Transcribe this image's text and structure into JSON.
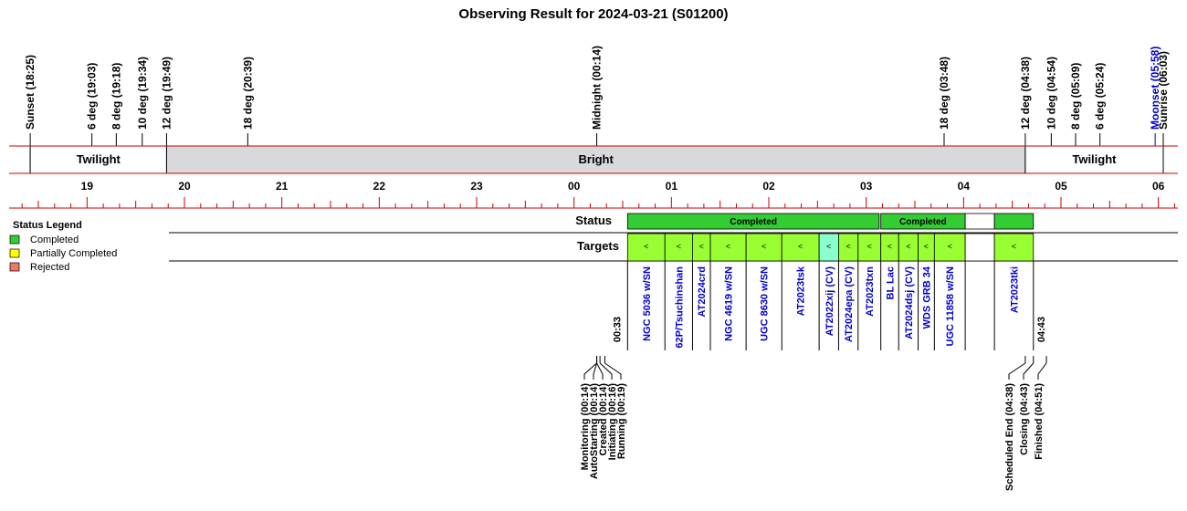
{
  "title": "Observing Result for 2024-03-21 (S01200)",
  "chart_data": {
    "type": "timeline",
    "time_axis": {
      "start_hour": 18.2,
      "end_hour": 30.2,
      "tick_labels": [
        "19",
        "20",
        "21",
        "22",
        "23",
        "00",
        "01",
        "02",
        "03",
        "04",
        "05",
        "06"
      ]
    },
    "events": [
      {
        "label": "Sunset (18:25)",
        "time": "18:25",
        "color": "#000000"
      },
      {
        "label": "6 deg (19:03)",
        "time": "19:03",
        "color": "#000000"
      },
      {
        "label": "8 deg (19:18)",
        "time": "19:18",
        "color": "#000000"
      },
      {
        "label": "10 deg (19:34)",
        "time": "19:34",
        "color": "#000000"
      },
      {
        "label": "12 deg (19:49)",
        "time": "19:49",
        "color": "#000000"
      },
      {
        "label": "18 deg (20:39)",
        "time": "20:39",
        "color": "#000000"
      },
      {
        "label": "Midnight (00:14)",
        "time": "00:14",
        "color": "#000000"
      },
      {
        "label": "18 deg (03:48)",
        "time": "03:48",
        "color": "#000000"
      },
      {
        "label": "12 deg (04:38)",
        "time": "04:38",
        "color": "#000000"
      },
      {
        "label": "10 deg (04:54)",
        "time": "04:54",
        "color": "#000000"
      },
      {
        "label": "8 deg (05:09)",
        "time": "05:09",
        "color": "#000000"
      },
      {
        "label": "6 deg (05:24)",
        "time": "05:24",
        "color": "#000000"
      },
      {
        "label": "Moonset (05:58)",
        "time": "05:58",
        "color": "#0000cc"
      },
      {
        "label": "Sunrise (06:03)",
        "time": "06:03",
        "color": "#000000"
      }
    ],
    "sky_periods": [
      {
        "label": "Twilight",
        "start": "18:25",
        "end": "19:49",
        "fill": "#ffffff"
      },
      {
        "label": "Bright",
        "start": "19:49",
        "end": "04:38",
        "fill": "#d9d9d9"
      },
      {
        "label": "Twilight",
        "start": "04:38",
        "end": "06:03",
        "fill": "#ffffff"
      }
    ],
    "status_row": {
      "label": "Status",
      "segments": [
        {
          "label": "Completed",
          "start": "00:33",
          "end": "03:08",
          "status": "Completed"
        },
        {
          "label": "Completed",
          "start": "03:09",
          "end": "04:01",
          "status": "Completed"
        },
        {
          "label": "",
          "start": "04:01",
          "end": "04:19",
          "status": "None"
        },
        {
          "label": "",
          "start": "04:19",
          "end": "04:43",
          "status": "Completed"
        }
      ]
    },
    "targets_row": {
      "label": "Targets",
      "targets": [
        {
          "name": "NGC 5036 w/SN",
          "start": "00:33",
          "end": "00:56",
          "fill": "#99ff33"
        },
        {
          "name": "62P/Tsuchinshan",
          "start": "00:56",
          "end": "01:13",
          "fill": "#99ff33"
        },
        {
          "name": "AT2024crd",
          "start": "01:13",
          "end": "01:24",
          "fill": "#99ff33"
        },
        {
          "name": "NGC 4619 w/SN",
          "start": "01:24",
          "end": "01:46",
          "fill": "#99ff33"
        },
        {
          "name": "UGC 8630 w/SN",
          "start": "01:46",
          "end": "02:08",
          "fill": "#99ff33"
        },
        {
          "name": "AT2023tsk",
          "start": "02:08",
          "end": "02:31",
          "fill": "#99ff33"
        },
        {
          "name": "AT2022xij (CV)",
          "start": "02:31",
          "end": "02:43",
          "fill": "#88ffcc"
        },
        {
          "name": "AT2024epa (CV)",
          "start": "02:43",
          "end": "02:55",
          "fill": "#99ff33"
        },
        {
          "name": "AT2023txn",
          "start": "02:55",
          "end": "03:09",
          "fill": "#99ff33"
        },
        {
          "name": "BL Lac",
          "start": "03:09",
          "end": "03:20",
          "fill": "#99ff33"
        },
        {
          "name": "AT2024dsj (CV)",
          "start": "03:20",
          "end": "03:32",
          "fill": "#99ff33"
        },
        {
          "name": "WDS GRB 34",
          "start": "03:32",
          "end": "03:42",
          "fill": "#99ff33"
        },
        {
          "name": "UGC 11858 w/SN",
          "start": "03:42",
          "end": "04:01",
          "fill": "#99ff33"
        },
        {
          "name": "",
          "start": "04:01",
          "end": "04:19",
          "fill": "#ffffff"
        },
        {
          "name": "AT2023tki",
          "start": "04:19",
          "end": "04:43",
          "fill": "#99ff33"
        }
      ],
      "marker_glyph": "<"
    },
    "bound_labels": [
      {
        "label": "00:33",
        "time": "00:33"
      },
      {
        "label": "04:43",
        "time": "04:43"
      }
    ],
    "bottom_events": [
      {
        "label": "Monitoring (00:14)",
        "time": "00:14"
      },
      {
        "label": "AutoStarting (00:14)",
        "time": "00:14"
      },
      {
        "label": "Created (00:14)",
        "time": "00:14"
      },
      {
        "label": "Initiating (00:16)",
        "time": "00:16"
      },
      {
        "label": "Running (00:19)",
        "time": "00:19"
      },
      {
        "label": "Scheduled End (04:38)",
        "time": "04:38"
      },
      {
        "label": "Closing (04:43)",
        "time": "04:43"
      },
      {
        "label": "Finished (04:51)",
        "time": "04:51"
      }
    ],
    "legend": {
      "title": "Status Legend",
      "placement": "left",
      "items": [
        {
          "label": "Completed",
          "color": "#33cc33"
        },
        {
          "label": "Partially Completed",
          "color": "#ffff00"
        },
        {
          "label": "Rejected",
          "color": "#ee7766"
        }
      ]
    },
    "colors": {
      "axis_line": "#cc0000",
      "completed": "#33cc33",
      "target_label": "#0000cc",
      "bright_fill": "#d9d9d9"
    }
  }
}
